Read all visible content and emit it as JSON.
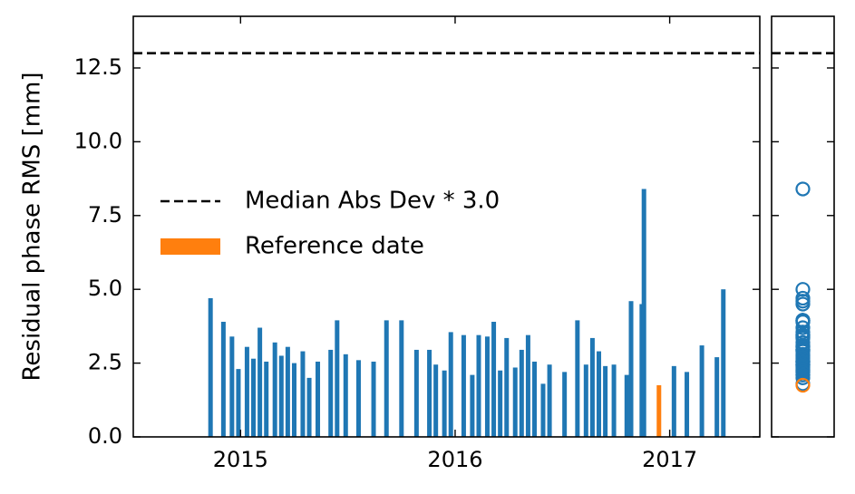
{
  "chart_data": {
    "type": "bar",
    "ylabel": "Residual phase RMS [mm]",
    "xlim": [
      2014.5,
      2017.42
    ],
    "xticks": [
      2015,
      2016,
      2017
    ],
    "ylim": [
      0,
      14.25
    ],
    "yticks": [
      0.0,
      2.5,
      5.0,
      7.5,
      10.0,
      12.5
    ],
    "threshold": {
      "label": "Median Abs Dev * 3.0",
      "value": 13.0,
      "color": "#000000"
    },
    "legend": "center-left",
    "series": [
      {
        "color": "#1f77b4",
        "x": [
          2014.86,
          2014.92,
          2014.96,
          2014.99,
          2015.03,
          2015.06,
          2015.09,
          2015.12,
          2015.16,
          2015.19,
          2015.22,
          2015.25,
          2015.29,
          2015.32,
          2015.36,
          2015.42,
          2015.45,
          2015.49,
          2015.55,
          2015.62,
          2015.68,
          2015.75,
          2015.82,
          2015.88,
          2015.91,
          2015.95,
          2015.98,
          2016.04,
          2016.08,
          2016.11,
          2016.15,
          2016.18,
          2016.21,
          2016.24,
          2016.28,
          2016.31,
          2016.34,
          2016.37,
          2016.41,
          2016.44,
          2016.51,
          2016.57,
          2016.61,
          2016.64,
          2016.67,
          2016.7,
          2016.74,
          2016.8,
          2016.82,
          2016.87,
          2016.88,
          2017.02,
          2017.08,
          2017.15,
          2017.22,
          2017.25
        ],
        "values": [
          4.7,
          3.9,
          3.4,
          2.3,
          3.05,
          2.65,
          3.7,
          2.55,
          3.2,
          2.75,
          3.05,
          2.5,
          2.9,
          2.0,
          2.55,
          2.95,
          3.95,
          2.8,
          2.6,
          2.55,
          3.95,
          3.95,
          2.95,
          2.95,
          2.45,
          2.25,
          3.55,
          3.45,
          2.1,
          3.45,
          3.4,
          3.9,
          2.25,
          3.35,
          2.35,
          2.95,
          3.45,
          2.55,
          1.8,
          2.45,
          2.2,
          3.95,
          2.45,
          3.35,
          2.9,
          2.4,
          2.45,
          2.1,
          4.6,
          4.5,
          8.4,
          2.4,
          2.2,
          3.1,
          2.7,
          5.0
        ]
      },
      {
        "name": "Reference date",
        "color": "#ff7f0e",
        "x": [
          2016.95
        ],
        "values": [
          1.75
        ]
      }
    ]
  }
}
